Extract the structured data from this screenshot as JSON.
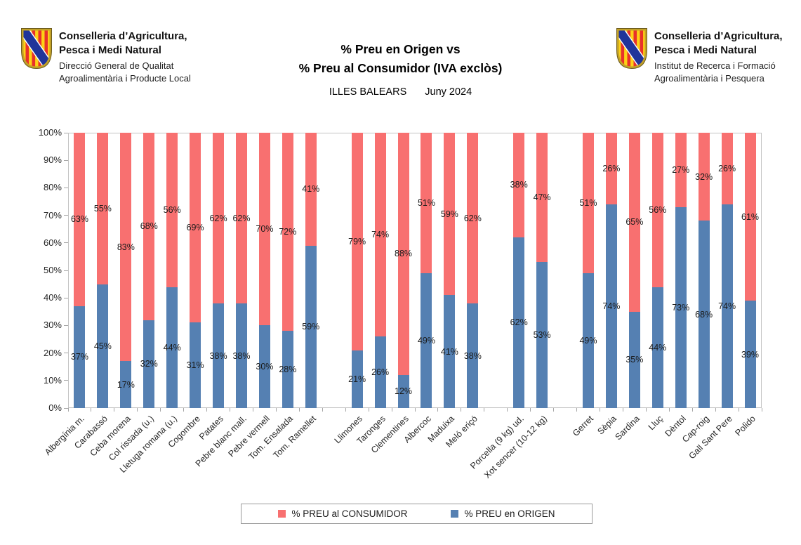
{
  "header": {
    "title_line1": "% Preu en Origen vs",
    "title_line2": "% Preu al Consumidor (IVA exclòs)",
    "subtitle_region": "ILLES BALEARS",
    "subtitle_period": "Juny 2024",
    "logo_left": {
      "icon": "balearic-coat-of-arms",
      "org_line1": "Conselleria d’Agricultura,",
      "org_line2": "Pesca i Medi Natural",
      "dept_line1": "Direcció General de Qualitat",
      "dept_line2": "Agroalimentària i Producte Local"
    },
    "logo_right": {
      "icon": "balearic-coat-of-arms",
      "org_line1": "Conselleria d’Agricultura,",
      "org_line2": "Pesca i Medi Natural",
      "dept_line1": "Institut de Recerca i Formació",
      "dept_line2": "Agroalimentària i Pesquera"
    }
  },
  "chart_data": {
    "type": "bar",
    "stacked": true,
    "title": "% Preu en Origen vs % Preu al Consumidor (IVA exclòs) — ILLES BALEARS Juny 2024",
    "xlabel": "",
    "ylabel": "",
    "ylim": [
      0,
      100
    ],
    "grid": false,
    "legend_position": "bottom",
    "y_ticks": [
      "0%",
      "10%",
      "20%",
      "30%",
      "40%",
      "50%",
      "60%",
      "70%",
      "80%",
      "90%",
      "100%"
    ],
    "categories": [
      "Albergínia m.",
      "Carabassó",
      "Ceba morena",
      "Col rissada (u.)",
      "Lletuga romana (u.)",
      "Cogombre",
      "Patates",
      "Pebre blanc mall.",
      "Pebre vermell",
      "Tom. Ensalada",
      "Tom. Ramellet",
      "",
      "Llimones",
      "Taronges",
      "Clementines",
      "Albercoc",
      "Maduixa",
      "Meló eriçó",
      "",
      "Porcella (9 kg) ud.",
      "Xot sencer (10-12 kg)",
      "",
      "Gerret",
      "Sèpia",
      "Sardina",
      "Lluç",
      "Dèntol",
      "Cap-roig",
      "Gall Sant Pere",
      "Polido"
    ],
    "series": [
      {
        "name": "% PREU en ORIGEN",
        "color": "#5580B2",
        "values": [
          37,
          45,
          17,
          32,
          44,
          31,
          38,
          38,
          30,
          28,
          59,
          null,
          21,
          26,
          12,
          49,
          41,
          38,
          null,
          62,
          53,
          null,
          49,
          74,
          35,
          44,
          73,
          68,
          74,
          39
        ]
      },
      {
        "name": "% PREU al CONSUMIDOR",
        "color": "#F87070",
        "values": [
          63,
          55,
          83,
          68,
          56,
          69,
          62,
          62,
          70,
          72,
          41,
          null,
          79,
          74,
          88,
          51,
          59,
          62,
          null,
          38,
          47,
          null,
          51,
          26,
          65,
          56,
          27,
          32,
          26,
          61
        ]
      }
    ],
    "data_labels": "value-percent-centered-in-segment",
    "legend": [
      {
        "label": "% PREU al CONSUMIDOR",
        "color": "#F87070"
      },
      {
        "label": "% PREU en ORIGEN",
        "color": "#5580B2"
      }
    ]
  },
  "colors": {
    "consumidor_red": "#F87070",
    "origen_blue": "#5580B2",
    "plot_border": "#C3C3C3",
    "tick": "#A6A6A6",
    "label_text": "#1A1A1A"
  }
}
